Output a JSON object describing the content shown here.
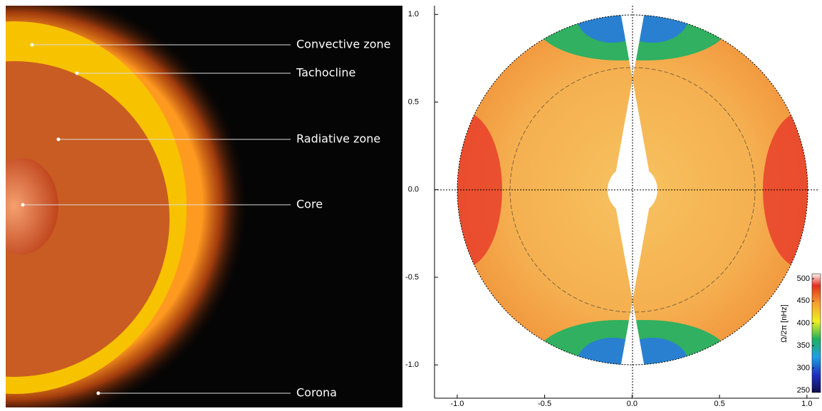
{
  "diagram": {
    "labels": [
      "Convective zone",
      "Tachocline",
      "Radiative zone",
      "Core",
      "Corona"
    ]
  },
  "chart_data": {
    "type": "contour",
    "xlim": [
      -1.13,
      1.07
    ],
    "ylim": [
      -1.19,
      1.05
    ],
    "xticks": [
      {
        "value": -1,
        "label": "-1.0"
      },
      {
        "value": -0.5,
        "label": "-0.5"
      },
      {
        "value": 0,
        "label": "0.0"
      },
      {
        "value": 0.5,
        "label": "0.5"
      },
      {
        "value": 1,
        "label": "1.0"
      }
    ],
    "yticks": [
      {
        "value": -1,
        "label": "-1.0"
      },
      {
        "value": -0.5,
        "label": "-0.5"
      },
      {
        "value": 0,
        "label": "0.0"
      },
      {
        "value": 0.5,
        "label": "0.5"
      },
      {
        "value": 1,
        "label": "1.0"
      }
    ],
    "colorbar": {
      "label": "Ω/2π [nHz]",
      "lim": [
        245,
        511
      ],
      "ticks": [
        250,
        300,
        350,
        400,
        450,
        500
      ]
    }
  }
}
